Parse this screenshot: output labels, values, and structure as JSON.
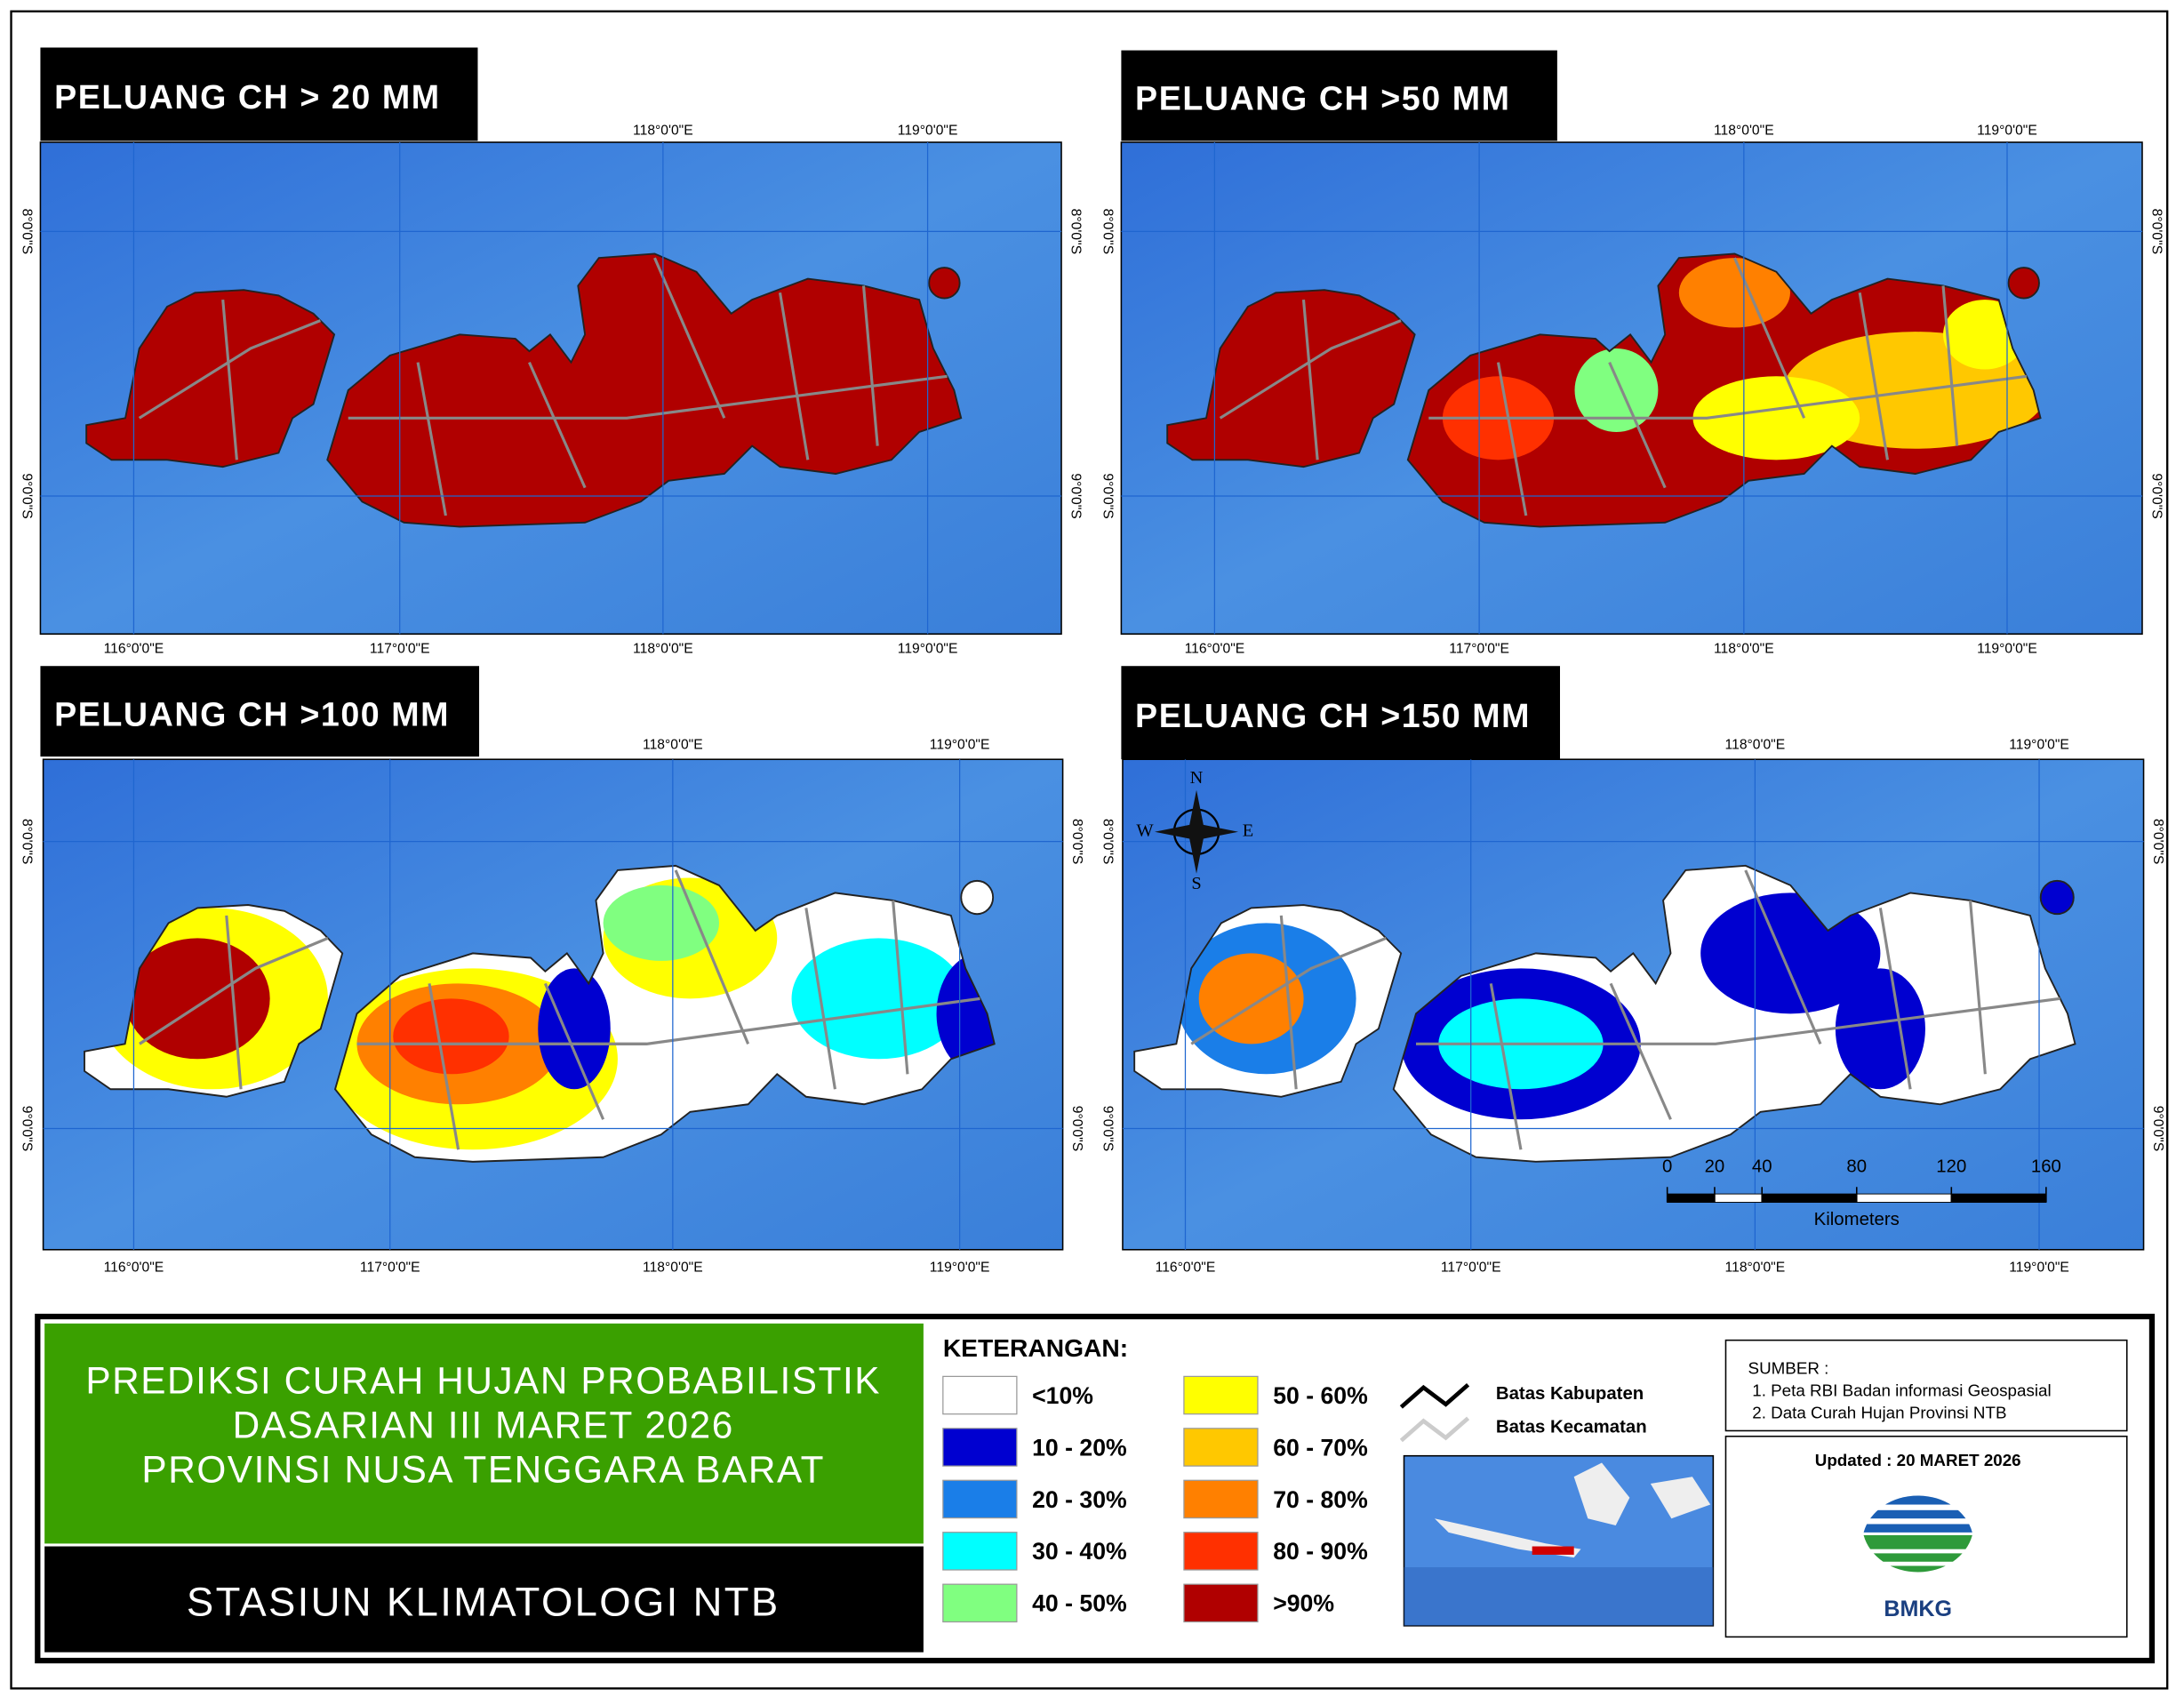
{
  "panels": [
    {
      "title": "PELUANG CH > 20 MM"
    },
    {
      "title": "PELUANG CH >50 MM"
    },
    {
      "title": "PELUANG CH >100 MM"
    },
    {
      "title": "PELUANG CH >150 MM"
    }
  ],
  "grid_labels": {
    "lon": [
      "116°0'0\"E",
      "117°0'0\"E",
      "118°0'0\"E",
      "119°0'0\"E"
    ],
    "lat": [
      "8°0'0\"S",
      "9°0'0\"S"
    ]
  },
  "compass": {
    "n": "N",
    "e": "E",
    "s": "S",
    "w": "W"
  },
  "scale_bar": {
    "ticks": [
      0,
      20,
      40,
      80,
      120,
      160
    ],
    "unit": "Kilometers"
  },
  "info": {
    "title_lines": [
      "PREDIKSI CURAH HUJAN PROBABILISTIK",
      "DASARIAN  III MARET 2026",
      "PROVINSI NUSA TENGGARA BARAT"
    ],
    "station": "STASIUN KLIMATOLOGI NTB"
  },
  "legend": {
    "title": "KETERANGAN:",
    "items": [
      {
        "label": "<10%",
        "color": "#ffffff"
      },
      {
        "label": "10 - 20%",
        "color": "#0000d0"
      },
      {
        "label": "20 - 30%",
        "color": "#1a7ee8"
      },
      {
        "label": "30 - 40%",
        "color": "#00ffff"
      },
      {
        "label": "40 - 50%",
        "color": "#80ff80"
      },
      {
        "label": "50 - 60%",
        "color": "#ffff00"
      },
      {
        "label": "60 - 70%",
        "color": "#ffc800"
      },
      {
        "label": "70 - 80%",
        "color": "#ff8000"
      },
      {
        "label": "80 - 90%",
        "color": "#ff3000"
      },
      {
        "label": ">90%",
        "color": "#b00000"
      }
    ],
    "lines": [
      {
        "label": "Batas Kabupaten"
      },
      {
        "label": "Batas Kecamatan"
      }
    ]
  },
  "source": {
    "title": "SUMBER :",
    "items": [
      "1. Peta RBI Badan informasi Geospasial",
      "2. Data Curah Hujan Provinsi NTB"
    ]
  },
  "updated": "Updated : 20 MARET 2026",
  "logo": "BMKG"
}
